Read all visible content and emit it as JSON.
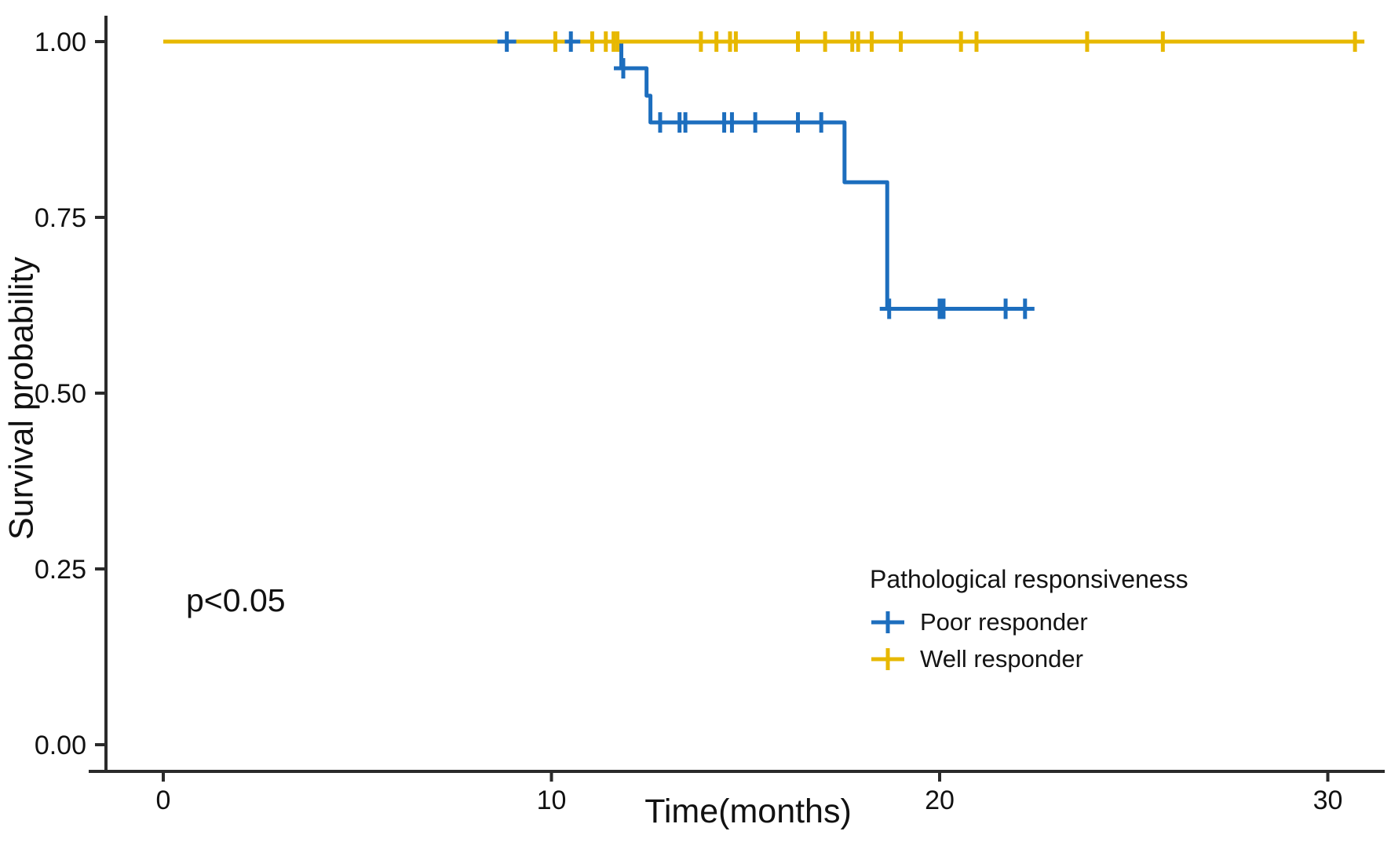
{
  "chart_data": {
    "type": "line",
    "subtype": "kaplan-meier-step",
    "title": "",
    "xlabel": "Time(months)",
    "ylabel": "Survival probability",
    "annotation": "p<0.05",
    "legend_title": "Pathological responsiveness",
    "legend_position": "inside-lower-right",
    "grid": false,
    "xlim": [
      0,
      31.5
    ],
    "ylim": [
      0,
      1.05
    ],
    "xticks": [
      0,
      10,
      20,
      30
    ],
    "xtick_labels": [
      "0",
      "10",
      "20",
      "30"
    ],
    "ytick_values": [
      0,
      0.25,
      0.5,
      0.75,
      1.0
    ],
    "ytick_labels": [
      "0.00",
      "0.25",
      "0.50",
      "0.75",
      "1.00"
    ],
    "colors": {
      "axis": "#2b2b2b",
      "text": "#111111"
    },
    "series": [
      {
        "name": "Poor responder",
        "color": "#1d6ebe",
        "steps": [
          [
            0,
            1.0
          ],
          [
            11.8,
            1.0
          ],
          [
            11.8,
            0.962
          ],
          [
            12.45,
            0.962
          ],
          [
            12.45,
            0.923
          ],
          [
            12.55,
            0.923
          ],
          [
            12.55,
            0.885
          ],
          [
            17.55,
            0.885
          ],
          [
            17.55,
            0.8
          ],
          [
            18.65,
            0.8
          ],
          [
            18.65,
            0.62
          ],
          [
            22.4,
            0.62
          ]
        ],
        "censors": [
          [
            8.85,
            1.0
          ],
          [
            10.5,
            1.0
          ],
          [
            11.85,
            0.962
          ],
          [
            12.8,
            0.885
          ],
          [
            13.3,
            0.885
          ],
          [
            13.45,
            0.885
          ],
          [
            14.45,
            0.885
          ],
          [
            14.65,
            0.885
          ],
          [
            15.25,
            0.885
          ],
          [
            16.35,
            0.885
          ],
          [
            16.95,
            0.885
          ],
          [
            18.7,
            0.62
          ],
          [
            20.0,
            0.62
          ],
          [
            20.1,
            0.62
          ],
          [
            21.7,
            0.62
          ],
          [
            22.2,
            0.62
          ]
        ]
      },
      {
        "name": "Well responder",
        "color": "#e7b800",
        "steps": [
          [
            0,
            1.0
          ],
          [
            30.78,
            1.0
          ]
        ],
        "censors": [
          [
            10.1,
            1.0
          ],
          [
            11.05,
            1.0
          ],
          [
            11.4,
            1.0
          ],
          [
            11.6,
            1.0
          ],
          [
            11.7,
            1.0
          ],
          [
            13.85,
            1.0
          ],
          [
            14.25,
            1.0
          ],
          [
            14.6,
            1.0
          ],
          [
            14.75,
            1.0
          ],
          [
            16.35,
            1.0
          ],
          [
            17.05,
            1.0
          ],
          [
            17.75,
            1.0
          ],
          [
            17.9,
            1.0
          ],
          [
            18.25,
            1.0
          ],
          [
            19.0,
            1.0
          ],
          [
            20.55,
            1.0
          ],
          [
            20.95,
            1.0
          ],
          [
            23.8,
            1.0
          ],
          [
            25.75,
            1.0
          ],
          [
            30.7,
            1.0
          ]
        ]
      }
    ]
  }
}
